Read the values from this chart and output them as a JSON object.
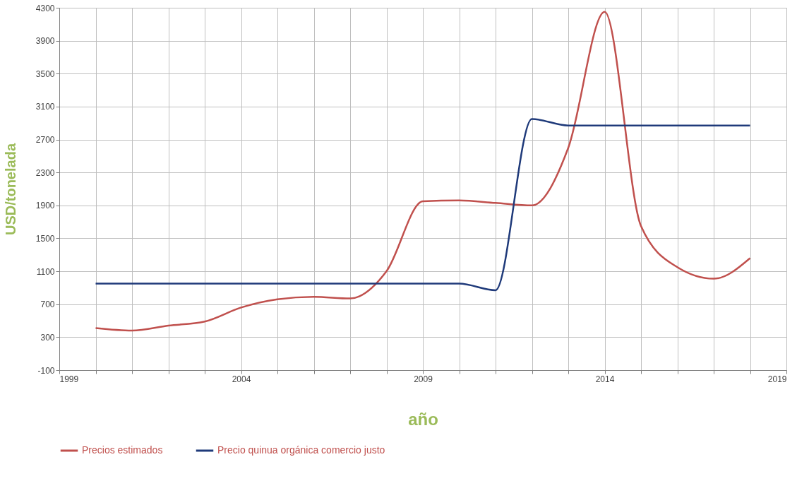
{
  "chart_data": {
    "type": "line",
    "xlabel": "año",
    "ylabel": "USD/tonelada",
    "x": [
      2000,
      2001,
      2002,
      2003,
      2004,
      2005,
      2006,
      2007,
      2008,
      2009,
      2010,
      2011,
      2012,
      2013,
      2014,
      2015,
      2016,
      2017,
      2018
    ],
    "series": [
      {
        "name": "Precios estimados",
        "color": "#c0504d",
        "values": [
          410,
          380,
          440,
          490,
          660,
          760,
          790,
          770,
          1100,
          1950,
          1960,
          1930,
          1900,
          2600,
          4250,
          1650,
          1150,
          1010,
          1260
        ]
      },
      {
        "name": "Precio quinua orgánica comercio justo",
        "color": "#1f3a7a",
        "values": [
          950,
          950,
          950,
          950,
          950,
          950,
          950,
          950,
          950,
          950,
          950,
          870,
          2950,
          2870,
          2870,
          2870,
          2870,
          2870,
          2870
        ]
      }
    ],
    "xlim": [
      1999,
      2019
    ],
    "xticks": [
      1999,
      {
        "value": 2000,
        "label": null
      },
      {
        "value": 2001,
        "label": null
      },
      {
        "value": 2002,
        "label": null
      },
      {
        "value": 2003,
        "label": null
      },
      2004,
      {
        "value": 2005,
        "label": null
      },
      {
        "value": 2006,
        "label": null
      },
      {
        "value": 2007,
        "label": null
      },
      {
        "value": 2008,
        "label": null
      },
      2009,
      {
        "value": 2010,
        "label": null
      },
      {
        "value": 2011,
        "label": null
      },
      {
        "value": 2012,
        "label": null
      },
      {
        "value": 2013,
        "label": null
      },
      2014,
      {
        "value": 2015,
        "label": null
      },
      {
        "value": 2016,
        "label": null
      },
      {
        "value": 2017,
        "label": null
      },
      {
        "value": 2018,
        "label": null
      },
      2019
    ],
    "ylim": [
      -100,
      4300
    ],
    "yticks": [
      -100,
      300,
      700,
      1100,
      1500,
      1900,
      2300,
      2700,
      3100,
      3500,
      3900,
      4300
    ],
    "grid": true,
    "legend": "bottom",
    "marker": "none",
    "line_style": "solid"
  }
}
